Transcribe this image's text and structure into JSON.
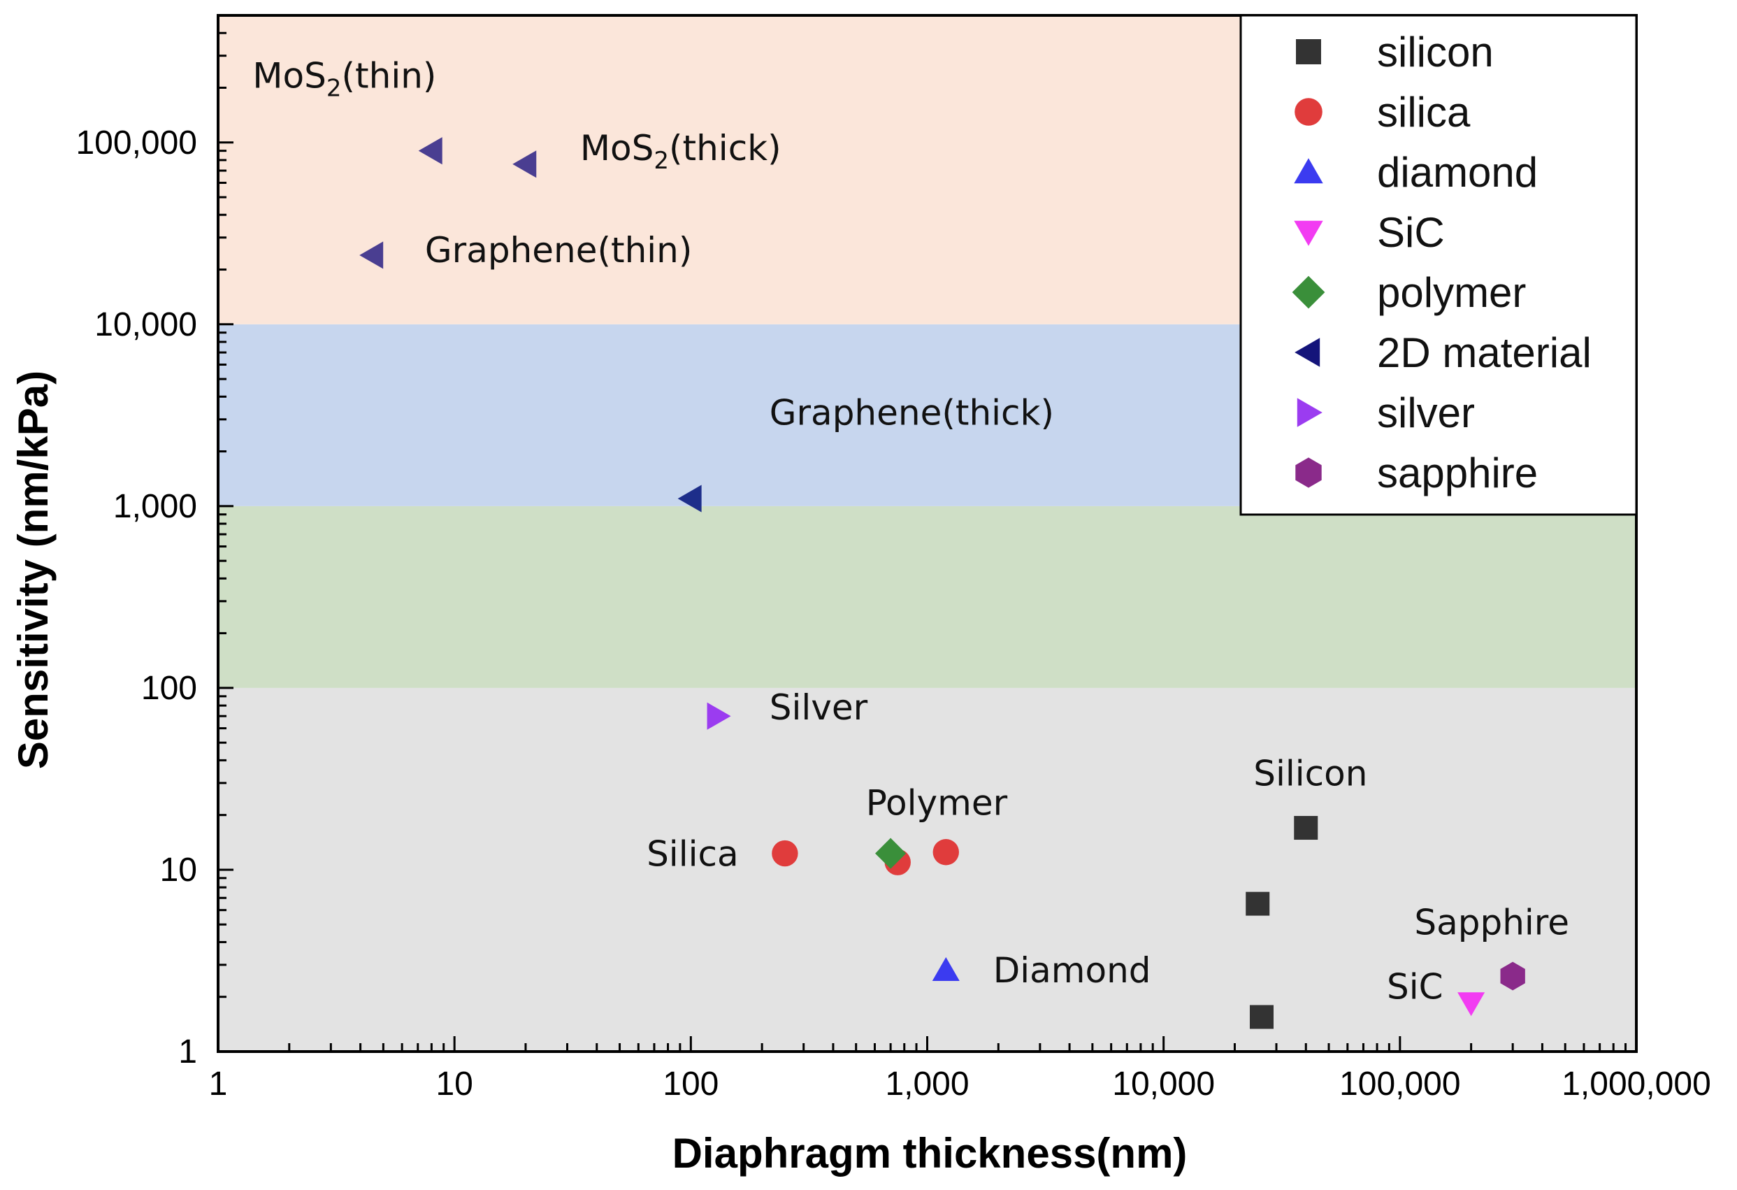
{
  "chart_data": {
    "type": "scatter",
    "xlabel": "Diaphragm thickness(nm)",
    "ylabel": "Sensitivity (nm/kPa)",
    "xscale": "log",
    "yscale": "log",
    "xlim": [
      1,
      1000000
    ],
    "ylim": [
      1,
      500000
    ],
    "x_ticks": [
      {
        "value": 1,
        "label": "1"
      },
      {
        "value": 10,
        "label": "10"
      },
      {
        "value": 100,
        "label": "100"
      },
      {
        "value": 1000,
        "label": "1,000"
      },
      {
        "value": 10000,
        "label": "10,000"
      },
      {
        "value": 100000,
        "label": "100,000"
      },
      {
        "value": 1000000,
        "label": "1,000,000"
      }
    ],
    "y_ticks": [
      {
        "value": 1,
        "label": "1"
      },
      {
        "value": 10,
        "label": "10"
      },
      {
        "value": 100,
        "label": "100"
      },
      {
        "value": 1000,
        "label": "1,000"
      },
      {
        "value": 10000,
        "label": "10,000"
      },
      {
        "value": 100000,
        "label": "100,000"
      }
    ],
    "bands": [
      {
        "from": 1,
        "to": 100,
        "color": "#e3e3e3"
      },
      {
        "from": 100,
        "to": 1000,
        "color": "#cfdfc6"
      },
      {
        "from": 1000,
        "to": 10000,
        "color": "#c7d6ee"
      },
      {
        "from": 10000,
        "to": 500000,
        "color": "#fbe6da"
      }
    ],
    "legend_position": "top-right",
    "series": [
      {
        "name": "silicon",
        "marker": "square",
        "color": "#333333",
        "points": [
          {
            "x": 40000,
            "y": 17
          },
          {
            "x": 25000,
            "y": 6.5
          },
          {
            "x": 26000,
            "y": 1.55
          }
        ]
      },
      {
        "name": "silica",
        "marker": "circle",
        "color": "#e03c3c",
        "points": [
          {
            "x": 250,
            "y": 12.3
          },
          {
            "x": 750,
            "y": 11
          },
          {
            "x": 1200,
            "y": 12.5
          }
        ]
      },
      {
        "name": "diamond",
        "marker": "triangle-up",
        "color": "#3b3bf0",
        "points": [
          {
            "x": 1200,
            "y": 2.8
          }
        ]
      },
      {
        "name": "SiC",
        "marker": "triangle-down",
        "color": "#f23cf2",
        "points": [
          {
            "x": 200000,
            "y": 1.85
          }
        ]
      },
      {
        "name": "polymer",
        "marker": "diamond",
        "color": "#3a8f3a",
        "points": [
          {
            "x": 700,
            "y": 12.3
          }
        ]
      },
      {
        "name": "2D material",
        "marker": "triangle-left",
        "color": "#14147a",
        "legend_only": true,
        "points": []
      },
      {
        "name": "2D material (MoS2/Graphene thin/thick)",
        "marker": "triangle-left",
        "color": "#4a3e91",
        "hide_in_legend": true,
        "points": [
          {
            "x": 8,
            "y": 90000
          },
          {
            "x": 20,
            "y": 76000
          },
          {
            "x": 4.5,
            "y": 24000
          }
        ]
      },
      {
        "name": "2D material (Graphene thick)",
        "marker": "triangle-left",
        "color": "#1d2e8a",
        "hide_in_legend": true,
        "points": [
          {
            "x": 100,
            "y": 1100
          }
        ]
      },
      {
        "name": "silver",
        "marker": "triangle-right",
        "color": "#9b3cf0",
        "points": [
          {
            "x": 130,
            "y": 70
          }
        ]
      },
      {
        "name": "sapphire",
        "marker": "hexagon",
        "color": "#8a2a8a",
        "points": [
          {
            "x": 300000,
            "y": 2.6
          }
        ]
      }
    ],
    "annotations": [
      {
        "id": "mos2-thin",
        "base": "MoS",
        "sub": "2",
        "suffix": "(thin)",
        "x": 1.4,
        "y": 200000
      },
      {
        "id": "mos2-thick",
        "base": "MoS",
        "sub": "2",
        "suffix": "(thick)",
        "x": 34,
        "y": 80000
      },
      {
        "id": "graphene-thin",
        "text": "Graphene(thin)",
        "x": 7.5,
        "y": 22000
      },
      {
        "id": "graphene-thick",
        "text": "Graphene(thick)",
        "x": 215,
        "y": 2800
      },
      {
        "id": "silver",
        "text": "Silver",
        "x": 215,
        "y": 67
      },
      {
        "id": "polymer",
        "text": "Polymer",
        "x": 550,
        "y": 20
      },
      {
        "id": "silica",
        "text": "Silica",
        "x": 65,
        "y": 10.5
      },
      {
        "id": "silicon",
        "text": "Silicon",
        "x": 24000,
        "y": 29
      },
      {
        "id": "diamond",
        "text": "Diamond",
        "x": 1900,
        "y": 2.4
      },
      {
        "id": "sapphire",
        "text": "Sapphire",
        "x": 115000,
        "y": 4.4
      },
      {
        "id": "sic",
        "text": "SiC",
        "x": 88000,
        "y": 1.95
      }
    ]
  }
}
